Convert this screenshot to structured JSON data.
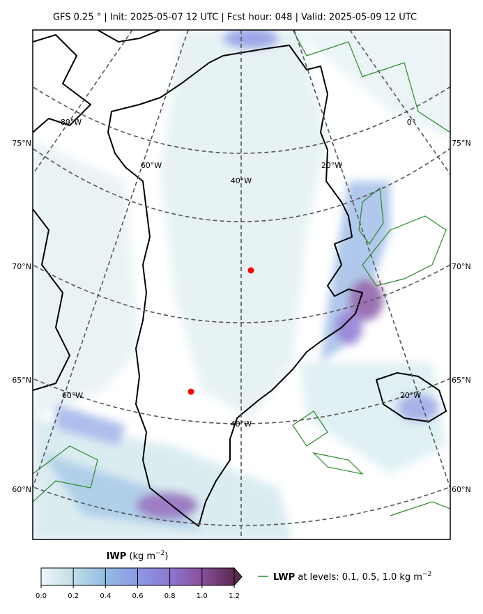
{
  "header": {
    "title": "GFS 0.25 °  |  Init: 2025-05-07 12 UTC  |  Fcst hour: 048  |  Valid: 2025-05-09 12 UTC"
  },
  "map": {
    "lat_labels_left": [
      "75°N",
      "70°N",
      "65°N",
      "60°N"
    ],
    "lat_labels_right": [
      "75°N",
      "70°N",
      "65°N",
      "60°N"
    ],
    "lon_labels": [
      "80°W",
      "60°W",
      "40°W",
      "20°W",
      "0°",
      "60°W",
      "20°W",
      "40°W"
    ]
  },
  "colorbar": {
    "label_bold": "IWP",
    "label_unit": "(kg m",
    "label_exp": "−2",
    "label_close": ")",
    "range": [
      0,
      1.2
    ],
    "ticks": [
      {
        "value": 0,
        "label": "0.0"
      },
      {
        "value": 0.2,
        "label": "0.2"
      },
      {
        "value": 0.4,
        "label": "0.4"
      },
      {
        "value": 0.6,
        "label": "0.6"
      },
      {
        "value": 0.8,
        "label": "0.8"
      },
      {
        "value": 1.0,
        "label": "1.0"
      },
      {
        "value": 1.2,
        "label": "1.2"
      }
    ]
  },
  "legend": {
    "bold": "LWP",
    "text": "at levels: 0.1, 0.5, 1.0  kg m",
    "exp": "−2"
  }
}
